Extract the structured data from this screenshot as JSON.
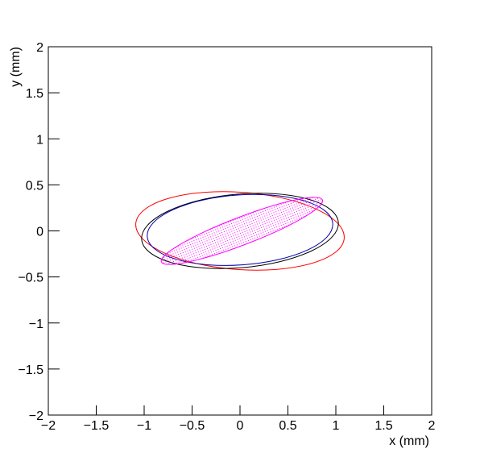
{
  "chart_data": {
    "type": "ellipse",
    "xlabel": "x (mm)",
    "ylabel": "y (mm)",
    "xlim": [
      -2,
      2
    ],
    "ylim": [
      -2,
      2
    ],
    "xticks": [
      {
        "value": -2,
        "label": "−2"
      },
      {
        "value": -1.5,
        "label": "−1.5"
      },
      {
        "value": -1,
        "label": "−1"
      },
      {
        "value": -0.5,
        "label": "−0.5"
      },
      0,
      0.5,
      1,
      1.5,
      2
    ],
    "yticks": [
      {
        "value": -2,
        "label": "−2"
      },
      {
        "value": -1.5,
        "label": "−1.5"
      },
      {
        "value": -1,
        "label": "−1"
      },
      {
        "value": -0.5,
        "label": "−0.5"
      },
      0,
      0.5,
      1,
      1.5,
      2
    ],
    "ellipses": [
      {
        "color": "#ff0000",
        "cx": 0,
        "cy": 0,
        "a": 1.09,
        "b": 0.42,
        "angle": -4,
        "fill": "none"
      },
      {
        "color": "#000000",
        "cx": 0,
        "cy": 0,
        "a": 1.03,
        "b": 0.4,
        "angle": 5,
        "fill": "none"
      },
      {
        "color": "#0000aa",
        "cx": 0,
        "cy": 0.01,
        "a": 0.97,
        "b": 0.38,
        "angle": 4,
        "fill": "none"
      },
      {
        "color": "#ff00ff",
        "cx": 0.02,
        "cy": 0,
        "a": 0.9,
        "b": 0.15,
        "angle": 21,
        "fill": "hatch"
      }
    ]
  }
}
